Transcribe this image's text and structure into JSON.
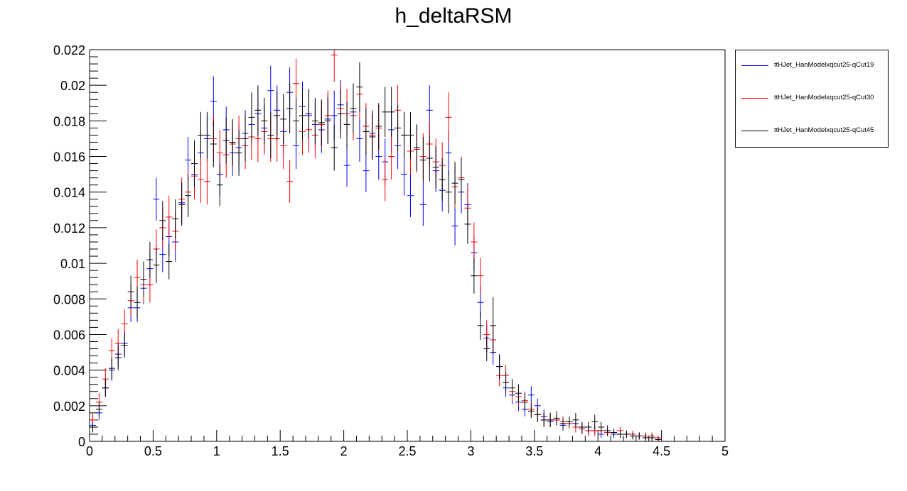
{
  "window": {
    "title": "h_deltaRSM"
  },
  "chart_data": {
    "type": "scatter",
    "title": "h_deltaRSM",
    "xlabel": "",
    "ylabel": "",
    "xlim": [
      0,
      5
    ],
    "ylim": [
      0,
      0.022
    ],
    "x_ticks": [
      "0",
      "0.5",
      "1",
      "1.5",
      "2",
      "2.5",
      "3",
      "3.5",
      "4",
      "4.5",
      "5"
    ],
    "y_ticks": [
      "0",
      "0.002",
      "0.004",
      "0.006",
      "0.008",
      "0.01",
      "0.012",
      "0.014",
      "0.016",
      "0.018",
      "0.02",
      "0.022"
    ],
    "bin_width": 0.05,
    "grid": false,
    "legend_position": "outside-right",
    "series": [
      {
        "name": "ttHJet_HanModelxqcut25-qCut19",
        "color": "#0000ff",
        "values": [
          0.0009,
          0.0016,
          0.003,
          0.004,
          0.0049,
          0.0055,
          0.0075,
          0.0075,
          0.0086,
          0.0097,
          0.0136,
          0.0105,
          0.0115,
          0.0112,
          0.0134,
          0.0158,
          0.015,
          0.0162,
          0.017,
          0.0191,
          0.015,
          0.0175,
          0.0162,
          0.0165,
          0.0173,
          0.0178,
          0.0184,
          0.0176,
          0.0197,
          0.0186,
          0.0174,
          0.0196,
          0.0166,
          0.0188,
          0.0183,
          0.0178,
          0.0175,
          0.0181,
          0.0183,
          0.0189,
          0.0155,
          0.0185,
          0.017,
          0.0152,
          0.0173,
          0.016,
          0.0157,
          0.0175,
          0.0166,
          0.015,
          0.0138,
          0.0165,
          0.0133,
          0.0186,
          0.0152,
          0.0141,
          0.0162,
          0.0121,
          0.014,
          0.0133,
          0.0106,
          0.0078,
          0.0058,
          0.005,
          0.0042,
          0.003,
          0.0026,
          0.0022,
          0.0018,
          0.0026,
          0.002,
          0.0014,
          0.0011,
          0.0012,
          0.0009,
          0.001,
          0.001,
          0.0007,
          0.0006,
          0.0006,
          0.0004,
          0.0005,
          0.0004,
          0.0004,
          0.0004,
          0.0003,
          0.0003,
          0.0002,
          0.0002,
          0.0002
        ],
        "errors": [
          0.0003,
          0.0004,
          0.0005,
          0.0006,
          0.0007,
          0.0007,
          0.0008,
          0.0008,
          0.0009,
          0.001,
          0.0012,
          0.001,
          0.0011,
          0.0011,
          0.0012,
          0.0013,
          0.0012,
          0.0013,
          0.0013,
          0.0014,
          0.0012,
          0.0013,
          0.0013,
          0.0013,
          0.0013,
          0.0013,
          0.0014,
          0.0013,
          0.0014,
          0.0014,
          0.0013,
          0.0014,
          0.0013,
          0.0014,
          0.0014,
          0.0013,
          0.0013,
          0.0014,
          0.0014,
          0.0014,
          0.0012,
          0.0014,
          0.0013,
          0.0012,
          0.0013,
          0.0013,
          0.0013,
          0.0013,
          0.0013,
          0.0012,
          0.0012,
          0.0013,
          0.0012,
          0.0014,
          0.0012,
          0.0012,
          0.0013,
          0.0011,
          0.0012,
          0.0012,
          0.001,
          0.0009,
          0.0008,
          0.0007,
          0.0006,
          0.0005,
          0.0005,
          0.0005,
          0.0004,
          0.0005,
          0.0004,
          0.0004,
          0.0003,
          0.0003,
          0.0003,
          0.0003,
          0.0003,
          0.0003,
          0.0002,
          0.0002,
          0.0002,
          0.0002,
          0.0002,
          0.0002,
          0.0002,
          0.0002,
          0.0002,
          0.0001,
          0.0001,
          0.0001
        ]
      },
      {
        "name": "ttHJet_HanModelxqcut25-qCut30",
        "color": "#ff0000",
        "values": [
          0.0012,
          0.0022,
          0.0035,
          0.0051,
          0.0055,
          0.0066,
          0.0079,
          0.0092,
          0.0088,
          0.0088,
          0.0108,
          0.012,
          0.0126,
          0.0118,
          0.0136,
          0.014,
          0.0149,
          0.0147,
          0.0146,
          0.017,
          0.0162,
          0.0161,
          0.0167,
          0.017,
          0.0166,
          0.0171,
          0.017,
          0.0174,
          0.017,
          0.017,
          0.0166,
          0.0146,
          0.0201,
          0.0174,
          0.0175,
          0.0172,
          0.0178,
          0.0183,
          0.0217,
          0.0187,
          0.0184,
          0.0183,
          0.0195,
          0.0177,
          0.0172,
          0.0176,
          0.0147,
          0.016,
          0.0186,
          0.0172,
          0.0163,
          0.0164,
          0.016,
          0.0167,
          0.0157,
          0.0155,
          0.0182,
          0.0143,
          0.0148,
          0.0131,
          0.0112,
          0.0093,
          0.006,
          0.0057,
          0.0037,
          0.0037,
          0.0028,
          0.0025,
          0.0023,
          0.0018,
          0.0015,
          0.0012,
          0.0012,
          0.0012,
          0.0011,
          0.001,
          0.0008,
          0.0007,
          0.0006,
          0.0006,
          0.0006,
          0.0005,
          0.0005,
          0.0006,
          0.0004,
          0.0004,
          0.0003,
          0.0003,
          0.0003,
          0.0002
        ],
        "errors": [
          0.0004,
          0.0005,
          0.0006,
          0.0007,
          0.0008,
          0.0008,
          0.0009,
          0.001,
          0.001,
          0.001,
          0.0011,
          0.0011,
          0.0012,
          0.0011,
          0.0012,
          0.0012,
          0.0013,
          0.0013,
          0.0013,
          0.0013,
          0.0013,
          0.0013,
          0.0013,
          0.0013,
          0.0013,
          0.0013,
          0.0013,
          0.0013,
          0.0013,
          0.0013,
          0.0013,
          0.0012,
          0.0014,
          0.0013,
          0.0013,
          0.0013,
          0.0013,
          0.0014,
          0.0015,
          0.0014,
          0.0014,
          0.0014,
          0.0014,
          0.0013,
          0.0013,
          0.0013,
          0.0012,
          0.0013,
          0.0014,
          0.0013,
          0.0013,
          0.0013,
          0.0013,
          0.0013,
          0.0013,
          0.0013,
          0.0014,
          0.0012,
          0.0012,
          0.0012,
          0.0011,
          0.001,
          0.0008,
          0.0008,
          0.0006,
          0.0006,
          0.0005,
          0.0005,
          0.0005,
          0.0004,
          0.0004,
          0.0004,
          0.0004,
          0.0003,
          0.0003,
          0.0003,
          0.0003,
          0.0003,
          0.0003,
          0.0003,
          0.0002,
          0.0002,
          0.0002,
          0.0002,
          0.0002,
          0.0002,
          0.0002,
          0.0002,
          0.0002,
          0.0001
        ]
      },
      {
        "name": "ttHJet_HanModelxqcut25-qCut45",
        "color": "#000000",
        "values": [
          0.0008,
          0.0018,
          0.003,
          0.0041,
          0.0047,
          0.0054,
          0.0084,
          0.0078,
          0.0091,
          0.0102,
          0.0099,
          0.0124,
          0.0101,
          0.0125,
          0.0133,
          0.0138,
          0.0156,
          0.0172,
          0.0172,
          0.0167,
          0.0144,
          0.0169,
          0.0168,
          0.0162,
          0.017,
          0.0182,
          0.0186,
          0.018,
          0.0172,
          0.0183,
          0.0181,
          0.0187,
          0.018,
          0.0183,
          0.0184,
          0.018,
          0.0179,
          0.018,
          0.0165,
          0.0184,
          0.0178,
          0.0187,
          0.0199,
          0.0174,
          0.0171,
          0.0177,
          0.0185,
          0.0185,
          0.0176,
          0.0172,
          0.0172,
          0.0165,
          0.0158,
          0.0159,
          0.0154,
          0.0147,
          0.014,
          0.0145,
          0.0147,
          0.0122,
          0.0093,
          0.0065,
          0.0052,
          0.0065,
          0.0042,
          0.0033,
          0.003,
          0.0027,
          0.0022,
          0.0017,
          0.0015,
          0.0012,
          0.0012,
          0.0013,
          0.001,
          0.0011,
          0.0012,
          0.0008,
          0.0008,
          0.0011,
          0.0008,
          0.0006,
          0.0005,
          0.0004,
          0.0004,
          0.0003,
          0.0003,
          0.0002,
          0.0002,
          0.0001
        ],
        "errors": [
          0.0003,
          0.0004,
          0.0005,
          0.0006,
          0.0007,
          0.0007,
          0.0009,
          0.0009,
          0.001,
          0.001,
          0.001,
          0.0011,
          0.001,
          0.0011,
          0.0012,
          0.0012,
          0.0013,
          0.0013,
          0.0013,
          0.0013,
          0.0012,
          0.0013,
          0.0013,
          0.0013,
          0.0013,
          0.0014,
          0.0014,
          0.0013,
          0.0013,
          0.0014,
          0.0014,
          0.0014,
          0.0013,
          0.0014,
          0.0014,
          0.0013,
          0.0013,
          0.0013,
          0.0013,
          0.0014,
          0.0013,
          0.0014,
          0.0014,
          0.0013,
          0.0013,
          0.0013,
          0.0014,
          0.0014,
          0.0013,
          0.0013,
          0.0013,
          0.0013,
          0.0013,
          0.0013,
          0.0012,
          0.0012,
          0.0012,
          0.0012,
          0.0012,
          0.0011,
          0.001,
          0.0008,
          0.0007,
          0.0016,
          0.0007,
          0.0006,
          0.0005,
          0.0005,
          0.0005,
          0.0004,
          0.0004,
          0.0004,
          0.0004,
          0.0004,
          0.0003,
          0.0003,
          0.0004,
          0.0003,
          0.0003,
          0.0004,
          0.0003,
          0.0003,
          0.0002,
          0.0002,
          0.0002,
          0.0002,
          0.0002,
          0.0002,
          0.0002,
          0.0001
        ]
      }
    ]
  }
}
